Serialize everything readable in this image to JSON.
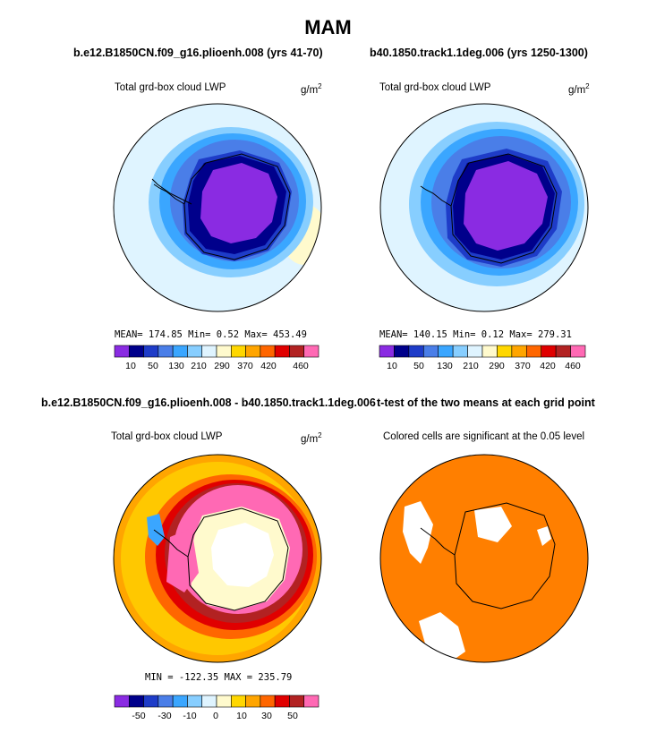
{
  "figure": {
    "title": "MAM"
  },
  "panels": [
    {
      "title": "b.e12.B1850CN.f09_g16.plioenh.008 (yrs 41-70)",
      "variable": "Total grd-box cloud LWP",
      "units": "g/m",
      "units_exp": "2",
      "stats": "MEAN= 174.85  Min=    0.52  Max= 453.49",
      "colorbar_ticks": [
        "10",
        "50",
        "130",
        "210",
        "290",
        "370",
        "420",
        "460"
      ]
    },
    {
      "title": "b40.1850.track1.1deg.006 (yrs 1250-1300)",
      "variable": "Total grd-box cloud LWP",
      "units": "g/m",
      "units_exp": "2",
      "stats": "MEAN= 140.15  Min=    0.12  Max= 279.31",
      "colorbar_ticks": [
        "10",
        "50",
        "130",
        "210",
        "290",
        "370",
        "420",
        "460"
      ]
    },
    {
      "title": "b.e12.B1850CN.f09_g16.plioenh.008 - b40.1850.track1.1deg.006",
      "variable": "Total grd-box cloud LWP",
      "units": "g/m",
      "units_exp": "2",
      "stats": "MIN = -122.35  MAX = 235.79",
      "colorbar_ticks": [
        "-50",
        "-30",
        "-10",
        "0",
        "10",
        "30",
        "50"
      ]
    },
    {
      "title": "t-test of the two means at each grid point",
      "variable": "Colored cells are significant at the 0.05 level"
    }
  ],
  "colors": {
    "abs_scale": [
      "#8a2be2",
      "#00008b",
      "#1e3cc8",
      "#4a7ee8",
      "#3aa6ff",
      "#87ceff",
      "#dff4ff",
      "#fffacd",
      "#ffd700",
      "#ffa500",
      "#ff6600",
      "#e00000",
      "#b22222",
      "#ff69b4"
    ],
    "diff_scale": [
      "#8a2be2",
      "#00008b",
      "#1e3cc8",
      "#4a7ee8",
      "#3aa6ff",
      "#87ceff",
      "#dff4ff",
      "#fffacd",
      "#ffd700",
      "#ffa500",
      "#ff6600",
      "#e00000",
      "#b22222",
      "#ff69b4"
    ],
    "significant": "#ff7f00"
  }
}
